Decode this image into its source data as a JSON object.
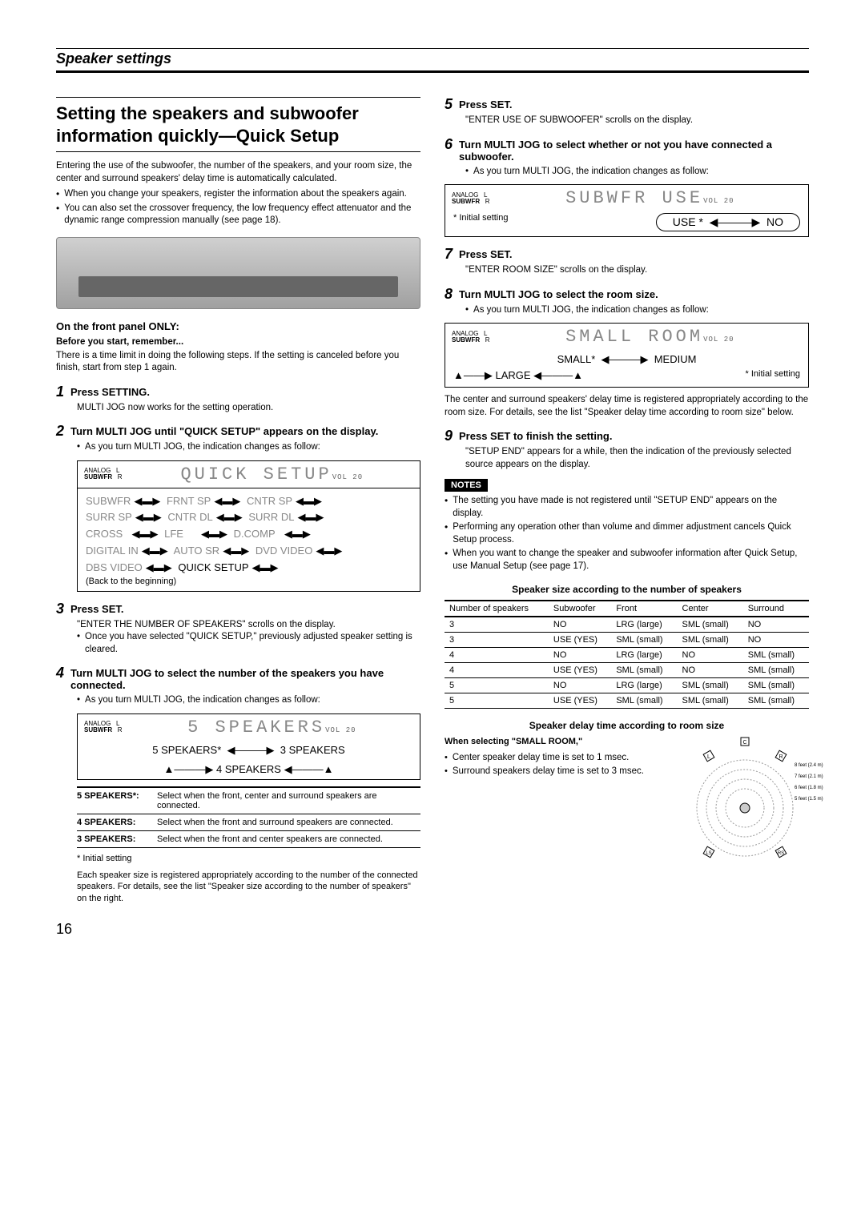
{
  "page_number": "16",
  "section_header": "Speaker settings",
  "main_title": "Setting the speakers and subwoofer information quickly—Quick Setup",
  "intro": "Entering the use of the subwoofer, the number of the speakers, and your room size, the center and surround speakers' delay time is automatically calculated.",
  "intro_bullets": [
    "When you change your speakers, register the information about the speakers again.",
    "You can also set the crossover frequency, the low frequency effect attenuator and the dynamic range compression manually (see page 18)."
  ],
  "front_panel_only": "On the front panel ONLY:",
  "before_start": "Before you start, remember...",
  "before_start_text": "There is a time limit in doing the following steps. If the setting is canceled before you finish, start from step 1 again.",
  "step1_title": "Press SETTING.",
  "step1_body": "MULTI JOG now works for the setting operation.",
  "step2_title": "Turn MULTI JOG until \"QUICK SETUP\" appears on the display.",
  "step2_bullet": "As you turn MULTI JOG, the indication changes as follow:",
  "display_quick": "QUICK SETUP",
  "vol20": "VOL 20",
  "cycle_items": [
    "SUBWFR",
    "FRNT SP",
    "CNTR SP",
    "SURR SP",
    "CNTR DL",
    "SURR DL",
    "CROSS",
    "LFE",
    "D.COMP",
    "DIGITAL IN",
    "AUTO SR",
    "DVD VIDEO",
    "DBS VIDEO",
    "QUICK SETUP"
  ],
  "cycle_back": "(Back to the beginning)",
  "step3_title": "Press SET.",
  "step3_body1": "\"ENTER THE NUMBER OF SPEAKERS\" scrolls on the display.",
  "step3_body2": "Once you have selected \"QUICK SETUP,\" previously adjusted speaker setting is cleared.",
  "step4_title": "Turn MULTI JOG to select the number of the speakers you have connected.",
  "step4_bullet": "As you turn MULTI JOG, the indication changes as follow:",
  "display_speakers": "5 SPEAKERS",
  "speaker_cycle": {
    "a": "5 SPEKAERS*",
    "b": "3 SPEAKERS",
    "c": "4 SPEAKERS"
  },
  "speaker_table": [
    {
      "label": "5 SPEAKERS*:",
      "desc": "Select when the front, center and surround speakers are connected."
    },
    {
      "label": "4 SPEAKERS:",
      "desc": "Select when the front and surround speakers are connected."
    },
    {
      "label": "3 SPEAKERS:",
      "desc": "Select when the front and center speakers are connected."
    }
  ],
  "footnote_star": "*  Initial setting",
  "footnote_text": "Each speaker size is registered appropriately according to the number of the connected speakers. For details, see the list \"Speaker size according to the number of speakers\" on the right.",
  "step5_title": "Press SET.",
  "step5_body": "\"ENTER USE OF SUBWOOFER\" scrolls on the display.",
  "step6_title": "Turn MULTI JOG to select whether or not you have connected a subwoofer.",
  "step6_bullet": "As you turn MULTI JOG, the indication changes as follow:",
  "display_subwfr": "SUBWFR  USE",
  "subwfr_cycle": {
    "a": "USE *",
    "b": "NO"
  },
  "initial_setting_label": "*  Initial setting",
  "step7_title": "Press SET.",
  "step7_body": "\"ENTER ROOM SIZE\" scrolls on the display.",
  "step8_title": "Turn MULTI JOG to select the room size.",
  "step8_bullet": "As you turn MULTI JOG, the indication changes as follow:",
  "display_room": "SMALL   ROOM",
  "room_cycle": {
    "a": "SMALL*",
    "b": "MEDIUM",
    "c": "LARGE"
  },
  "room_note": "The center and surround speakers' delay time is registered appropriately according to the room size. For details, see the list \"Speaker delay time according to room size\" below.",
  "step9_title": "Press SET to finish the setting.",
  "step9_body": "\"SETUP END\" appears for a while, then the indication of the previously selected source appears on the display.",
  "notes_label": "NOTES",
  "notes": [
    "The setting you have made is not registered until \"SETUP END\" appears on the display.",
    "Performing any operation other than volume and dimmer adjustment cancels Quick Setup process.",
    "When you want to change the speaker and subwoofer information after Quick Setup, use Manual Setup (see page 17)."
  ],
  "size_caption": "Speaker size according to the number of speakers",
  "size_headers": [
    "Number of speakers",
    "Subwoofer",
    "Front",
    "Center",
    "Surround"
  ],
  "size_rows": [
    [
      "3",
      "NO",
      "LRG (large)",
      "SML (small)",
      "NO"
    ],
    [
      "3",
      "USE (YES)",
      "SML (small)",
      "SML (small)",
      "NO"
    ],
    [
      "4",
      "NO",
      "LRG (large)",
      "NO",
      "SML (small)"
    ],
    [
      "4",
      "USE (YES)",
      "SML (small)",
      "NO",
      "SML (small)"
    ],
    [
      "5",
      "NO",
      "LRG (large)",
      "SML (small)",
      "SML (small)"
    ],
    [
      "5",
      "USE (YES)",
      "SML (small)",
      "SML (small)",
      "SML (small)"
    ]
  ],
  "delay_caption": "Speaker delay time according to room size",
  "delay_sub": "When selecting \"SMALL ROOM,\"",
  "delay_t1": "Center speaker delay time is set to 1 msec.",
  "delay_t2": "Surround speakers delay time is set to 3 msec.",
  "diagram_labels": {
    "d1": "8 feet (2.4 m)",
    "d2": "7 feet (2.1 m)",
    "d3": "6 feet (1.8 m)",
    "d4": "5 feet (1.5 m)"
  },
  "colors": {
    "grey": "#888888",
    "black": "#000000"
  }
}
